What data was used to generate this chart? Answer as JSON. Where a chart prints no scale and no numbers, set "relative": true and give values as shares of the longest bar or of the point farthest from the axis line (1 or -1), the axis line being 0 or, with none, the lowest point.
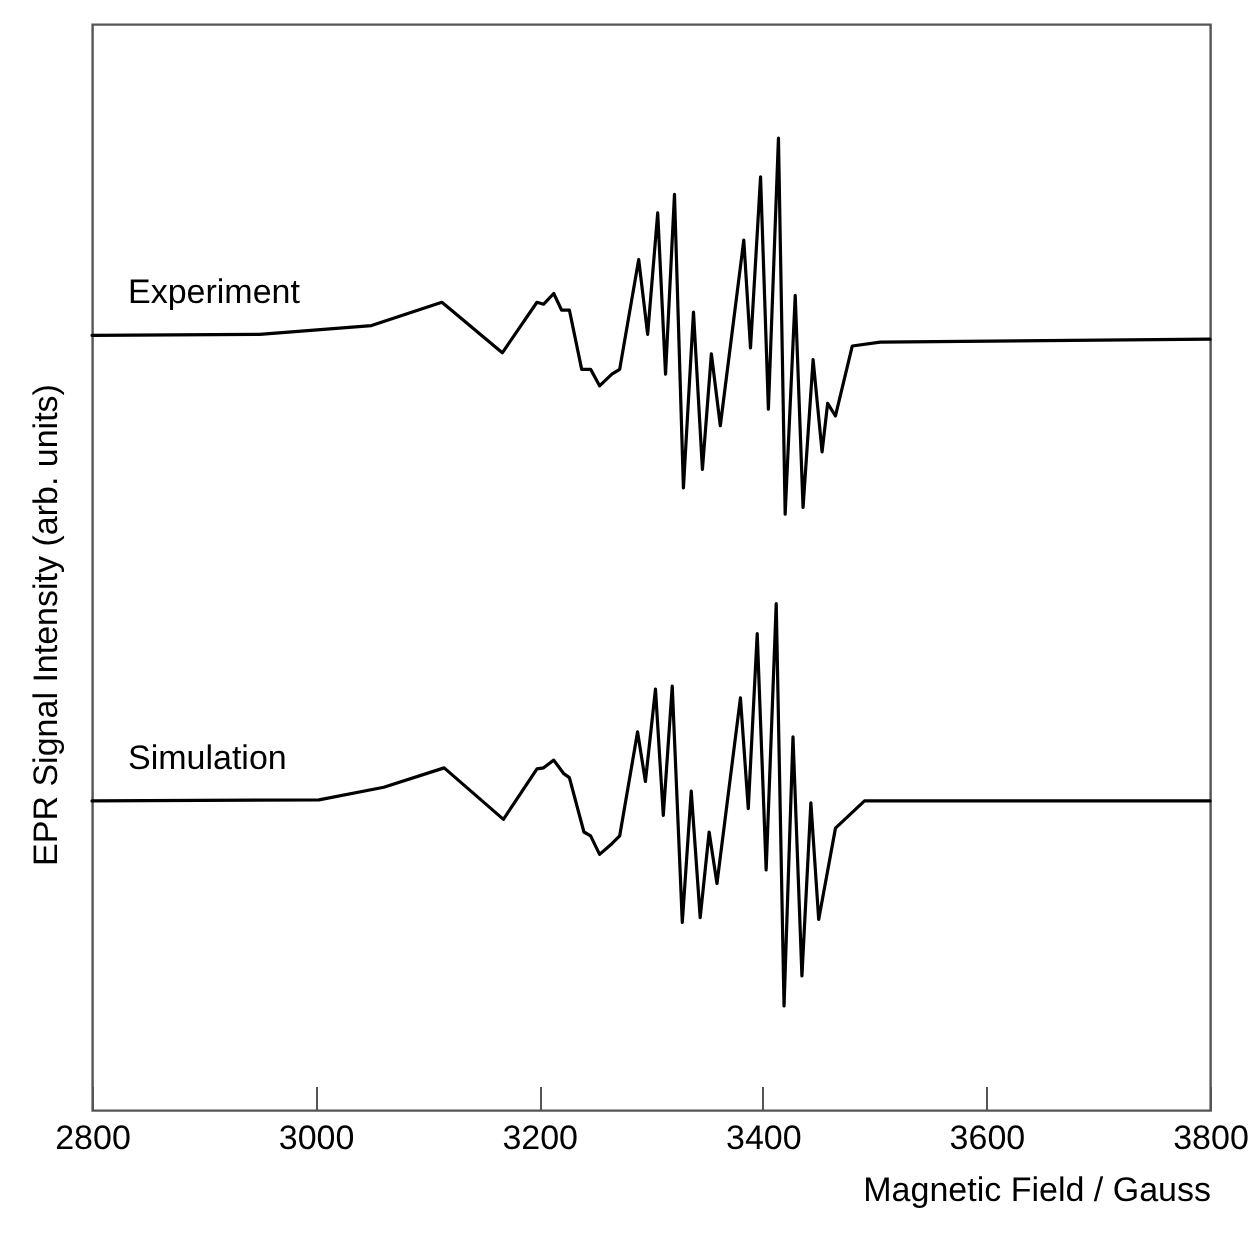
{
  "chart_data": {
    "type": "line",
    "relative": true,
    "xlabel": "Magnetic Field / Gauss",
    "ylabel": "EPR Signal Intensity (arb. units)",
    "xlim": [
      2800,
      3800
    ],
    "xticks": [
      2800,
      3000,
      3200,
      3400,
      3600,
      3800
    ],
    "grid": false,
    "legend": false,
    "series": [
      {
        "name": "Experiment",
        "color": "#000000",
        "x": [
          2800,
          2950,
          3050,
          3113,
          3167,
          3198,
          3204,
          3213,
          3220,
          3227,
          3238,
          3246,
          3254,
          3265,
          3272,
          3289,
          3297,
          3306,
          3313,
          3321,
          3329,
          3338,
          3346,
          3354,
          3362,
          3383,
          3389,
          3398,
          3405,
          3414,
          3420,
          3429,
          3436,
          3445,
          3453,
          3458,
          3465,
          3480,
          3505,
          3800
        ],
        "values": [
          0.797,
          0.798,
          0.807,
          0.831,
          0.779,
          0.831,
          0.829,
          0.84,
          0.823,
          0.823,
          0.762,
          0.762,
          0.745,
          0.757,
          0.762,
          0.875,
          0.798,
          0.923,
          0.757,
          0.942,
          0.64,
          0.821,
          0.659,
          0.778,
          0.704,
          0.895,
          0.784,
          0.96,
          0.721,
          1.0,
          0.613,
          0.838,
          0.62,
          0.772,
          0.677,
          0.727,
          0.714,
          0.786,
          0.79,
          0.793
        ]
      },
      {
        "name": "Simulation",
        "color": "#000000",
        "x": [
          2800,
          3003,
          3061,
          3115,
          3168,
          3198,
          3204,
          3213,
          3222,
          3227,
          3240,
          3246,
          3254,
          3265,
          3272,
          3288,
          3295,
          3304,
          3311,
          3319,
          3328,
          3336,
          3344,
          3352,
          3359,
          3380,
          3387,
          3395,
          3403,
          3412,
          3419,
          3427,
          3435,
          3443,
          3450,
          3465,
          3491,
          3800
        ],
        "values": [
          0.318,
          0.319,
          0.332,
          0.352,
          0.299,
          0.351,
          0.352,
          0.36,
          0.346,
          0.342,
          0.286,
          0.282,
          0.263,
          0.274,
          0.282,
          0.389,
          0.338,
          0.433,
          0.303,
          0.436,
          0.193,
          0.328,
          0.198,
          0.286,
          0.233,
          0.424,
          0.31,
          0.49,
          0.247,
          0.521,
          0.107,
          0.384,
          0.138,
          0.316,
          0.196,
          0.29,
          0.318,
          0.318
        ]
      }
    ]
  }
}
